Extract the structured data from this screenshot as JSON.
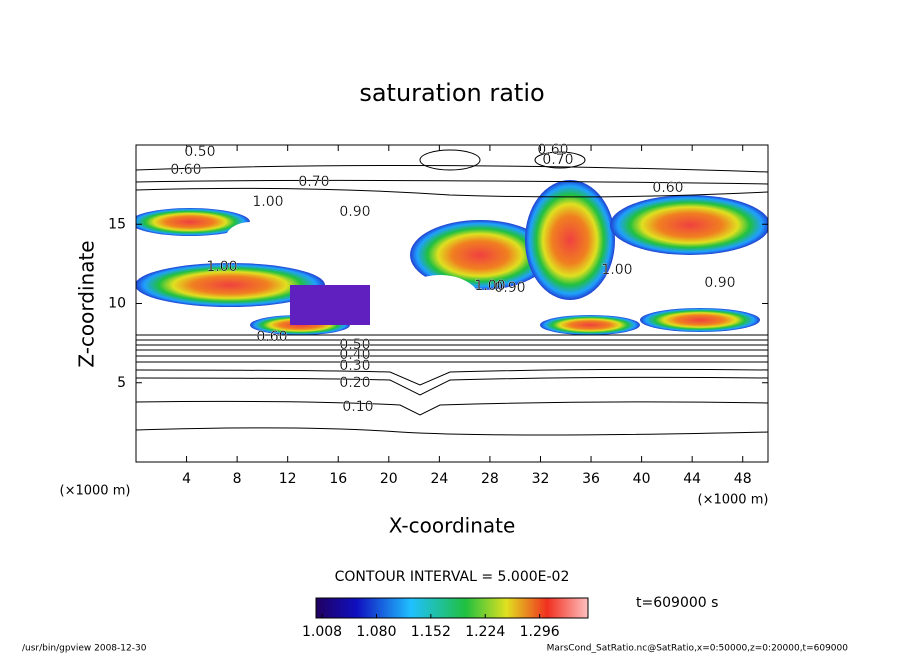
{
  "chart_data": {
    "type": "contour",
    "title": "saturation ratio",
    "xlabel": "X-coordinate",
    "ylabel": "Z-coordinate",
    "x_unit": "(×1000 m)",
    "y_unit": "(×1000 m)",
    "xlim": [
      0,
      50
    ],
    "xticks": [
      4,
      8,
      12,
      16,
      20,
      24,
      28,
      32,
      36,
      40,
      44,
      48
    ],
    "ylim": [
      0,
      20
    ],
    "yticks": [
      5,
      10,
      15
    ],
    "contour_labels": [
      "0.50",
      "0.60",
      "0.70",
      "1.00",
      "0.90",
      "0.60",
      "0.70",
      "0.60",
      "1.00",
      "1.00",
      "0.90",
      "1.00",
      "0.90",
      "0.60",
      "0.50",
      "0.40",
      "0.30",
      "0.20",
      "0.10"
    ],
    "contour_interval": "CONTOUR INTERVAL = 5.000E-02",
    "time_label": "t=609000 s",
    "colorbar": {
      "clim": [
        1.0,
        1.36
      ],
      "ticks": [
        1.008,
        {
          "value": 1.08,
          "label": "1.080"
        },
        1.152,
        1.224,
        1.296
      ]
    },
    "footer_left": "/usr/bin/gpview   2008-12-30",
    "footer_right": "MarsCond_SatRatio.nc@SatRatio,x=0:50000,z=0:20000,t=609000"
  }
}
